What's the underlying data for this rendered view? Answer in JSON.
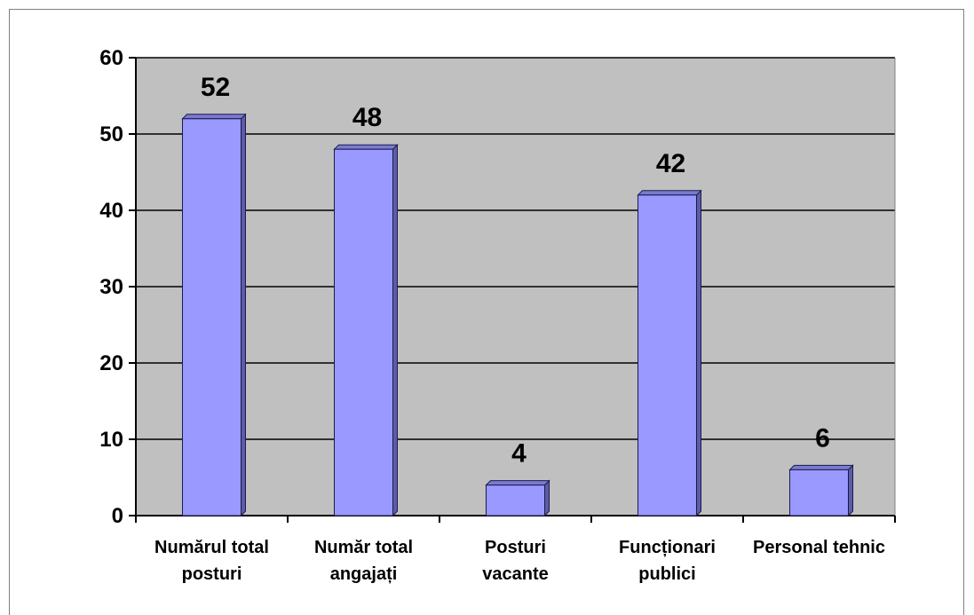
{
  "chart_data": {
    "type": "bar",
    "categories": [
      [
        "Numărul total",
        "posturi"
      ],
      [
        "Număr total",
        "angajați"
      ],
      [
        "Posturi",
        "vacante"
      ],
      [
        "Funcționari",
        "publici"
      ],
      [
        "Personal tehnic"
      ]
    ],
    "values": [
      52,
      48,
      4,
      42,
      6
    ],
    "data_labels": [
      "52",
      "48",
      "4",
      "42",
      "6"
    ],
    "y_ticks": [
      "0",
      "10",
      "20",
      "30",
      "40",
      "50",
      "60"
    ],
    "ylim": [
      0,
      60
    ],
    "grid": true,
    "legend": "none",
    "title": "",
    "xlabel": "",
    "ylabel": "",
    "colors": {
      "bar_fill": "#9999ff",
      "bar_side": "#5c5ca8",
      "bar_edge": "#1a1a4d",
      "plot_background": "#c0c0c0",
      "gridline": "#000000"
    }
  }
}
